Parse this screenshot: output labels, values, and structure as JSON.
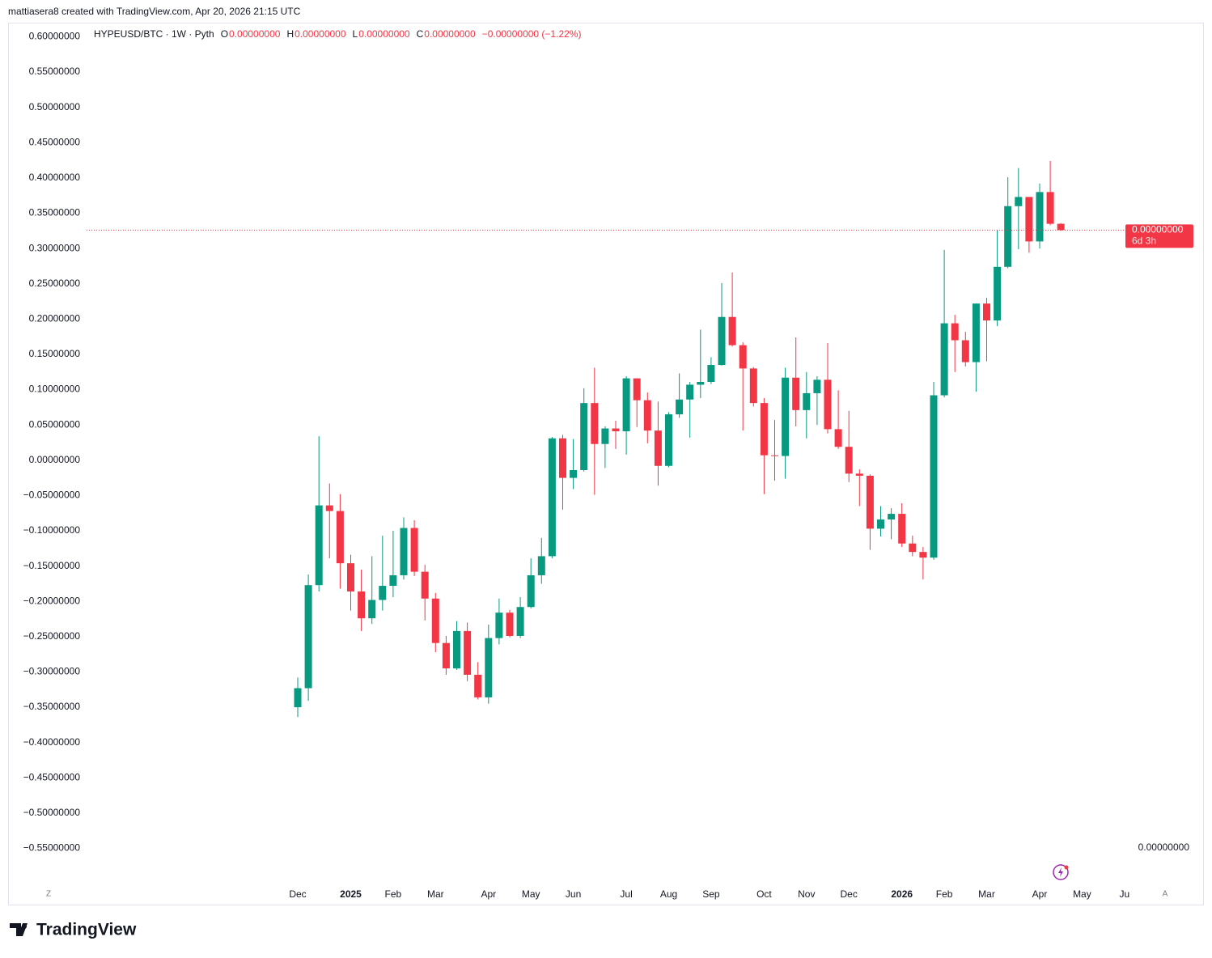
{
  "header": {
    "credit": "mattiasera8 created with TradingView.com, Apr 20, 2026 21:15 UTC"
  },
  "chart_data": {
    "type": "candlestick",
    "symbol": "HYPEUSD/BTC · 1W · Pyth",
    "ohlc_legend": [
      {
        "label": "O",
        "value": "0.00000000"
      },
      {
        "label": "H",
        "value": "0.00000000"
      },
      {
        "label": "L",
        "value": "0.00000000"
      },
      {
        "label": "C",
        "value": "0.00000000"
      }
    ],
    "change": "−0.00000000 (−1.22%)",
    "up_color": "#089981",
    "down_color": "#f23645",
    "open": [
      -0.35,
      -0.323,
      -0.177,
      -0.064,
      -0.072,
      -0.146,
      -0.186,
      -0.224,
      -0.198,
      -0.178,
      -0.163,
      -0.096,
      -0.158,
      -0.196,
      -0.259,
      -0.295,
      -0.242,
      -0.304,
      -0.336,
      -0.252,
      -0.216,
      -0.249,
      -0.208,
      -0.163,
      -0.136,
      0.031,
      -0.025,
      -0.014,
      0.081,
      0.023,
      0.045,
      0.041,
      0.116,
      0.085,
      0.042,
      -0.008,
      0.065,
      0.086,
      0.107,
      0.111,
      0.135,
      0.203,
      0.163,
      0.13,
      0.081,
      0.007,
      0.006,
      0.117,
      0.071,
      0.095,
      0.114,
      0.044,
      0.019,
      -0.019,
      -0.022,
      -0.097,
      -0.084,
      -0.076,
      -0.118,
      -0.13,
      -0.138,
      0.092,
      0.194,
      0.17,
      0.139,
      0.222,
      0.198,
      0.274,
      0.36,
      0.373,
      0.31,
      0.38,
      0.335
    ],
    "high": [
      -0.308,
      -0.162,
      0.034,
      -0.033,
      -0.048,
      -0.134,
      -0.155,
      -0.136,
      -0.107,
      -0.1,
      -0.081,
      -0.085,
      -0.148,
      -0.188,
      -0.249,
      -0.228,
      -0.23,
      -0.286,
      -0.233,
      -0.196,
      -0.212,
      -0.194,
      -0.139,
      -0.11,
      0.033,
      0.036,
      0.03,
      0.102,
      0.131,
      0.048,
      0.056,
      0.119,
      0.116,
      0.096,
      0.083,
      0.068,
      0.123,
      0.111,
      0.185,
      0.146,
      0.251,
      0.266,
      0.167,
      0.132,
      0.088,
      0.057,
      0.131,
      0.174,
      0.125,
      0.119,
      0.166,
      0.099,
      0.07,
      -0.013,
      -0.02,
      -0.065,
      -0.068,
      -0.061,
      -0.107,
      -0.123,
      0.111,
      0.298,
      0.206,
      0.182,
      0.222,
      0.23,
      0.326,
      0.401,
      0.414,
      0.373,
      0.392,
      0.424,
      0.336
    ],
    "low": [
      -0.364,
      -0.341,
      -0.186,
      -0.139,
      -0.182,
      -0.213,
      -0.242,
      -0.232,
      -0.213,
      -0.194,
      -0.169,
      -0.164,
      -0.227,
      -0.272,
      -0.304,
      -0.297,
      -0.313,
      -0.339,
      -0.345,
      -0.261,
      -0.251,
      -0.252,
      -0.21,
      -0.175,
      -0.139,
      -0.07,
      -0.041,
      -0.016,
      -0.049,
      -0.011,
      0.016,
      0.008,
      0.047,
      0.024,
      -0.036,
      -0.01,
      0.06,
      0.032,
      0.088,
      0.108,
      0.134,
      0.161,
      0.042,
      0.076,
      -0.048,
      -0.029,
      -0.026,
      0.048,
      0.031,
      0.05,
      0.038,
      0.016,
      -0.031,
      -0.065,
      -0.127,
      -0.108,
      -0.112,
      -0.123,
      -0.136,
      -0.169,
      -0.141,
      0.089,
      0.125,
      0.133,
      0.097,
      0.14,
      0.19,
      0.272,
      0.299,
      0.294,
      0.3,
      0.333,
      0.325
    ],
    "close": [
      -0.323,
      -0.177,
      -0.064,
      -0.072,
      -0.146,
      -0.186,
      -0.224,
      -0.198,
      -0.178,
      -0.163,
      -0.096,
      -0.158,
      -0.196,
      -0.259,
      -0.295,
      -0.242,
      -0.304,
      -0.336,
      -0.252,
      -0.216,
      -0.249,
      -0.208,
      -0.163,
      -0.136,
      0.031,
      -0.025,
      -0.014,
      0.081,
      0.023,
      0.045,
      0.041,
      0.116,
      0.085,
      0.042,
      -0.008,
      0.065,
      0.086,
      0.107,
      0.111,
      0.135,
      0.203,
      0.163,
      0.13,
      0.081,
      0.007,
      0.006,
      0.117,
      0.071,
      0.095,
      0.114,
      0.044,
      0.019,
      -0.019,
      -0.022,
      -0.097,
      -0.084,
      -0.076,
      -0.118,
      -0.13,
      -0.138,
      0.092,
      0.194,
      0.17,
      0.139,
      0.222,
      0.198,
      0.274,
      0.36,
      0.373,
      0.31,
      0.38,
      0.335,
      0.326
    ],
    "ylim": [
      -0.601,
      0.62
    ],
    "yticks": [
      {
        "value": 0.6,
        "label": "0.60000000"
      },
      {
        "value": 0.55,
        "label": "0.55000000"
      },
      {
        "value": 0.5,
        "label": "0.50000000"
      },
      {
        "value": 0.45,
        "label": "0.45000000"
      },
      {
        "value": 0.4,
        "label": "0.40000000"
      },
      {
        "value": 0.35,
        "label": "0.35000000"
      },
      {
        "value": 0.3,
        "label": "0.30000000"
      },
      {
        "value": 0.25,
        "label": "0.25000000"
      },
      {
        "value": 0.2,
        "label": "0.20000000"
      },
      {
        "value": 0.15,
        "label": "0.15000000"
      },
      {
        "value": 0.1,
        "label": "0.10000000"
      },
      {
        "value": 0.05,
        "label": "0.05000000"
      },
      {
        "value": 0,
        "label": "0.00000000"
      },
      {
        "value": -0.05,
        "label": "−0.05000000"
      },
      {
        "value": -0.1,
        "label": "−0.10000000"
      },
      {
        "value": -0.15,
        "label": "−0.15000000"
      },
      {
        "value": -0.2,
        "label": "−0.20000000"
      },
      {
        "value": -0.25,
        "label": "−0.25000000"
      },
      {
        "value": -0.3,
        "label": "−0.30000000"
      },
      {
        "value": -0.35,
        "label": "−0.35000000"
      },
      {
        "value": -0.4,
        "label": "−0.40000000"
      },
      {
        "value": -0.45,
        "label": "−0.45000000"
      },
      {
        "value": -0.5,
        "label": "−0.50000000"
      },
      {
        "value": -0.55,
        "label": "−0.55000000"
      }
    ],
    "xticks": [
      {
        "value": 0,
        "label": "Dec"
      },
      {
        "value": 5,
        "label": "2025"
      },
      {
        "value": 9,
        "label": "Feb"
      },
      {
        "value": 13,
        "label": "Mar"
      },
      {
        "value": 18,
        "label": "Apr"
      },
      {
        "value": 22,
        "label": "May"
      },
      {
        "value": 26,
        "label": "Jun"
      },
      {
        "value": 31,
        "label": "Jul"
      },
      {
        "value": 35,
        "label": "Aug"
      },
      {
        "value": 39,
        "label": "Sep"
      },
      {
        "value": 44,
        "label": "Oct"
      },
      {
        "value": 48,
        "label": "Nov"
      },
      {
        "value": 52,
        "label": "Dec"
      },
      {
        "value": 57,
        "label": "2026"
      },
      {
        "value": 61,
        "label": "Feb"
      },
      {
        "value": 65,
        "label": "Mar"
      },
      {
        "value": 70,
        "label": "Apr"
      },
      {
        "value": 74,
        "label": "May"
      },
      {
        "value": 78,
        "label": "Ju"
      }
    ],
    "price_label": "0.00000000",
    "countdown": "6d 3h",
    "corner_value": "0.00000000",
    "scale_buttons": [
      "Z",
      "A"
    ]
  },
  "footer": {
    "brand": "TradingView"
  }
}
